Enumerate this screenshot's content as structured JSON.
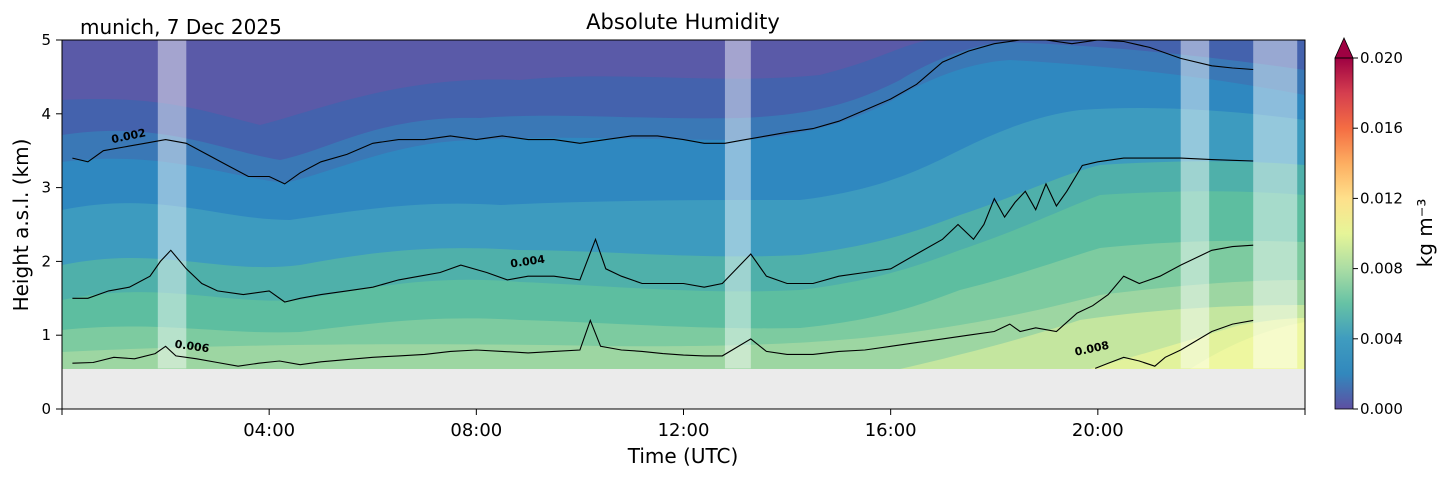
{
  "chart_data": {
    "type": "heatmap",
    "title": "Absolute Humidity",
    "location_label": "munich, 7 Dec 2025",
    "xlabel": "Time (UTC)",
    "ylabel": "Height a.s.l. (km)",
    "xlim_hours": [
      0,
      24
    ],
    "ylim_km": [
      0,
      5
    ],
    "x_ticks": [
      {
        "hour": 4,
        "label": "04:00"
      },
      {
        "hour": 8,
        "label": "08:00"
      },
      {
        "hour": 12,
        "label": "12:00"
      },
      {
        "hour": 16,
        "label": "16:00"
      },
      {
        "hour": 20,
        "label": "20:00"
      }
    ],
    "y_ticks": [
      {
        "km": 0,
        "label": "0"
      },
      {
        "km": 1,
        "label": "1"
      },
      {
        "km": 2,
        "label": "2"
      },
      {
        "km": 3,
        "label": "3"
      },
      {
        "km": 4,
        "label": "4"
      },
      {
        "km": 5,
        "label": "5"
      }
    ],
    "data_bottom_km": 0.55,
    "colorbar": {
      "label": "kg m⁻³",
      "range": [
        0.0,
        0.02
      ],
      "ticks": [
        {
          "value": 0.0,
          "label": "0.000"
        },
        {
          "value": 0.004,
          "label": "0.004"
        },
        {
          "value": 0.008,
          "label": "0.008"
        },
        {
          "value": 0.012,
          "label": "0.012"
        },
        {
          "value": 0.016,
          "label": "0.016"
        },
        {
          "value": 0.02,
          "label": "0.020"
        }
      ],
      "extend": "max",
      "levels": 20
    },
    "gaps_hours": [
      [
        1.85,
        2.4
      ],
      [
        12.8,
        13.3
      ],
      [
        21.6,
        22.15
      ],
      [
        23.0,
        23.85
      ]
    ],
    "contours": [
      {
        "level": 0.002,
        "label": "0.002",
        "label_pos": [
          1.3,
          3.65
        ],
        "label_angle": -12,
        "points": [
          [
            0.2,
            3.4
          ],
          [
            0.5,
            3.35
          ],
          [
            0.8,
            3.5
          ],
          [
            1.2,
            3.55
          ],
          [
            1.6,
            3.6
          ],
          [
            2.0,
            3.65
          ],
          [
            2.4,
            3.6
          ],
          [
            2.8,
            3.45
          ],
          [
            3.2,
            3.3
          ],
          [
            3.6,
            3.15
          ],
          [
            4.0,
            3.15
          ],
          [
            4.3,
            3.05
          ],
          [
            4.6,
            3.2
          ],
          [
            5.0,
            3.35
          ],
          [
            5.5,
            3.45
          ],
          [
            6.0,
            3.6
          ],
          [
            6.5,
            3.65
          ],
          [
            7.0,
            3.65
          ],
          [
            7.5,
            3.7
          ],
          [
            8.0,
            3.65
          ],
          [
            8.5,
            3.7
          ],
          [
            9.0,
            3.65
          ],
          [
            9.5,
            3.65
          ],
          [
            10.0,
            3.6
          ],
          [
            10.5,
            3.65
          ],
          [
            11.0,
            3.7
          ],
          [
            11.5,
            3.7
          ],
          [
            12.0,
            3.65
          ],
          [
            12.4,
            3.6
          ],
          [
            12.8,
            3.6
          ],
          [
            13.2,
            3.65
          ],
          [
            13.6,
            3.7
          ],
          [
            14.0,
            3.75
          ],
          [
            14.5,
            3.8
          ],
          [
            15.0,
            3.9
          ],
          [
            15.5,
            4.05
          ],
          [
            16.0,
            4.2
          ],
          [
            16.5,
            4.4
          ],
          [
            17.0,
            4.7
          ],
          [
            17.5,
            4.85
          ],
          [
            18.0,
            4.95
          ],
          [
            18.5,
            5.0
          ],
          [
            19.0,
            5.0
          ],
          [
            19.5,
            4.95
          ],
          [
            20.0,
            5.0
          ],
          [
            20.5,
            4.98
          ],
          [
            21.0,
            4.9
          ],
          [
            21.6,
            4.75
          ],
          [
            22.2,
            4.65
          ],
          [
            22.6,
            4.62
          ],
          [
            23.0,
            4.6
          ]
        ]
      },
      {
        "level": 0.004,
        "label": "0.004",
        "label_pos": [
          9.0,
          1.95
        ],
        "label_angle": -8,
        "points": [
          [
            0.2,
            1.5
          ],
          [
            0.5,
            1.5
          ],
          [
            0.9,
            1.6
          ],
          [
            1.3,
            1.65
          ],
          [
            1.7,
            1.8
          ],
          [
            1.9,
            2.0
          ],
          [
            2.1,
            2.15
          ],
          [
            2.4,
            1.9
          ],
          [
            2.7,
            1.7
          ],
          [
            3.0,
            1.6
          ],
          [
            3.5,
            1.55
          ],
          [
            4.0,
            1.6
          ],
          [
            4.3,
            1.45
          ],
          [
            4.6,
            1.5
          ],
          [
            5.0,
            1.55
          ],
          [
            5.5,
            1.6
          ],
          [
            6.0,
            1.65
          ],
          [
            6.5,
            1.75
          ],
          [
            6.9,
            1.8
          ],
          [
            7.3,
            1.85
          ],
          [
            7.7,
            1.95
          ],
          [
            8.2,
            1.85
          ],
          [
            8.6,
            1.75
          ],
          [
            9.0,
            1.8
          ],
          [
            9.5,
            1.8
          ],
          [
            10.0,
            1.75
          ],
          [
            10.3,
            2.3
          ],
          [
            10.5,
            1.9
          ],
          [
            10.8,
            1.8
          ],
          [
            11.2,
            1.7
          ],
          [
            11.6,
            1.7
          ],
          [
            12.0,
            1.7
          ],
          [
            12.4,
            1.65
          ],
          [
            12.75,
            1.7
          ],
          [
            13.3,
            2.1
          ],
          [
            13.6,
            1.8
          ],
          [
            14.0,
            1.7
          ],
          [
            14.5,
            1.7
          ],
          [
            15.0,
            1.8
          ],
          [
            15.5,
            1.85
          ],
          [
            16.0,
            1.9
          ],
          [
            16.5,
            2.1
          ],
          [
            17.0,
            2.3
          ],
          [
            17.3,
            2.5
          ],
          [
            17.6,
            2.3
          ],
          [
            17.8,
            2.5
          ],
          [
            18.0,
            2.85
          ],
          [
            18.2,
            2.6
          ],
          [
            18.4,
            2.8
          ],
          [
            18.6,
            2.95
          ],
          [
            18.8,
            2.7
          ],
          [
            19.0,
            3.05
          ],
          [
            19.2,
            2.75
          ],
          [
            19.4,
            2.95
          ],
          [
            19.7,
            3.3
          ],
          [
            20.0,
            3.35
          ],
          [
            20.5,
            3.4
          ],
          [
            21.0,
            3.4
          ],
          [
            21.6,
            3.4
          ],
          [
            22.2,
            3.38
          ],
          [
            22.6,
            3.37
          ],
          [
            23.0,
            3.36
          ]
        ]
      },
      {
        "level": 0.006,
        "label": "0.006",
        "label_pos": [
          2.5,
          0.8
        ],
        "label_angle": 8,
        "points": [
          [
            0.2,
            0.62
          ],
          [
            0.6,
            0.63
          ],
          [
            1.0,
            0.7
          ],
          [
            1.4,
            0.68
          ],
          [
            1.8,
            0.75
          ],
          [
            2.0,
            0.85
          ],
          [
            2.2,
            0.72
          ],
          [
            2.6,
            0.68
          ],
          [
            3.0,
            0.63
          ],
          [
            3.4,
            0.58
          ],
          [
            3.8,
            0.62
          ],
          [
            4.2,
            0.65
          ],
          [
            4.6,
            0.6
          ],
          [
            5.0,
            0.64
          ],
          [
            5.5,
            0.67
          ],
          [
            6.0,
            0.7
          ],
          [
            6.5,
            0.72
          ],
          [
            7.0,
            0.74
          ],
          [
            7.5,
            0.78
          ],
          [
            8.0,
            0.8
          ],
          [
            8.5,
            0.78
          ],
          [
            9.0,
            0.76
          ],
          [
            9.5,
            0.78
          ],
          [
            10.0,
            0.8
          ],
          [
            10.2,
            1.2
          ],
          [
            10.4,
            0.85
          ],
          [
            10.8,
            0.8
          ],
          [
            11.2,
            0.78
          ],
          [
            11.6,
            0.75
          ],
          [
            12.0,
            0.73
          ],
          [
            12.4,
            0.72
          ],
          [
            12.75,
            0.72
          ],
          [
            13.3,
            0.95
          ],
          [
            13.6,
            0.78
          ],
          [
            14.0,
            0.74
          ],
          [
            14.5,
            0.74
          ],
          [
            15.0,
            0.78
          ],
          [
            15.5,
            0.8
          ],
          [
            16.0,
            0.85
          ],
          [
            16.5,
            0.9
          ],
          [
            17.0,
            0.95
          ],
          [
            17.5,
            1.0
          ],
          [
            18.0,
            1.05
          ],
          [
            18.3,
            1.15
          ],
          [
            18.5,
            1.05
          ],
          [
            18.8,
            1.1
          ],
          [
            19.2,
            1.05
          ],
          [
            19.6,
            1.3
          ],
          [
            19.9,
            1.4
          ],
          [
            20.2,
            1.55
          ],
          [
            20.5,
            1.8
          ],
          [
            20.8,
            1.7
          ],
          [
            21.2,
            1.8
          ],
          [
            21.6,
            1.95
          ],
          [
            22.2,
            2.15
          ],
          [
            22.6,
            2.2
          ],
          [
            23.0,
            2.22
          ]
        ]
      },
      {
        "level": 0.008,
        "label": "0.008",
        "label_pos": [
          19.9,
          0.77
        ],
        "label_angle": -12,
        "points": [
          [
            19.95,
            0.55
          ],
          [
            20.2,
            0.62
          ],
          [
            20.5,
            0.7
          ],
          [
            20.8,
            0.65
          ],
          [
            21.1,
            0.58
          ],
          [
            21.3,
            0.7
          ],
          [
            21.6,
            0.8
          ],
          [
            22.2,
            1.05
          ],
          [
            22.6,
            1.15
          ],
          [
            23.0,
            1.2
          ]
        ]
      }
    ]
  }
}
